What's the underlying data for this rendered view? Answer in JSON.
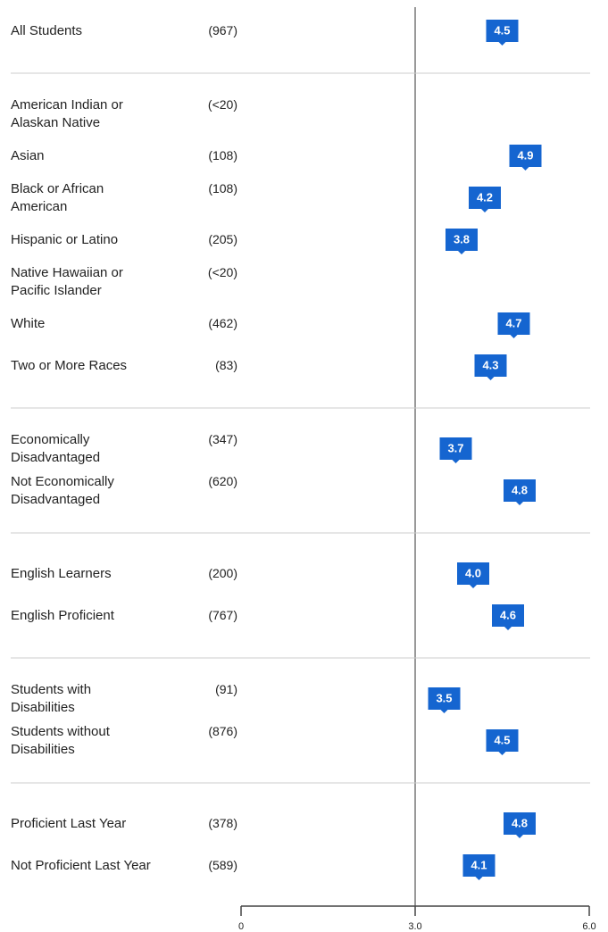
{
  "chart_data": {
    "type": "dot",
    "xlim": [
      0,
      6
    ],
    "xticks": [
      0,
      {
        "value": 3,
        "label": "3.0"
      },
      {
        "value": 6,
        "label": "6.0"
      }
    ],
    "reference_line": 3,
    "color": "#1565d0",
    "groups": [
      {
        "categories": [
          "All Students"
        ],
        "counts": [
          "(967)"
        ],
        "values": [
          4.5
        ],
        "value_labels": [
          "4.5"
        ]
      },
      {
        "categories": [
          "American Indian or\nAlaskan Native",
          "Asian",
          "Black or African\nAmerican",
          "Hispanic or Latino",
          "Native Hawaiian or\nPacific Islander",
          "White",
          "Two or More Races"
        ],
        "counts": [
          "(<20)",
          "(108)",
          "(108)",
          "(205)",
          "(<20)",
          "(462)",
          "(83)"
        ],
        "values": [
          null,
          4.9,
          4.2,
          3.8,
          null,
          4.7,
          4.3
        ],
        "value_labels": [
          null,
          "4.9",
          "4.2",
          "3.8",
          null,
          "4.7",
          "4.3"
        ]
      },
      {
        "categories": [
          "Economically\nDisadvantaged",
          "Not Economically\nDisadvantaged"
        ],
        "counts": [
          "(347)",
          "(620)"
        ],
        "values": [
          3.7,
          4.8
        ],
        "value_labels": [
          "3.7",
          "4.8"
        ]
      },
      {
        "categories": [
          "English Learners",
          "English Proficient"
        ],
        "counts": [
          "(200)",
          "(767)"
        ],
        "values": [
          4.0,
          4.6
        ],
        "value_labels": [
          "4.0",
          "4.6"
        ]
      },
      {
        "categories": [
          "Students with\nDisabilities",
          "Students without\nDisabilities"
        ],
        "counts": [
          "(91)",
          "(876)"
        ],
        "values": [
          3.5,
          4.5
        ],
        "value_labels": [
          "3.5",
          "4.5"
        ]
      },
      {
        "categories": [
          "Proficient Last Year",
          "Not Proficient Last Year"
        ],
        "counts": [
          "(378)",
          "(589)"
        ],
        "values": [
          4.8,
          4.1
        ],
        "value_labels": [
          "4.8",
          "4.1"
        ]
      }
    ]
  }
}
